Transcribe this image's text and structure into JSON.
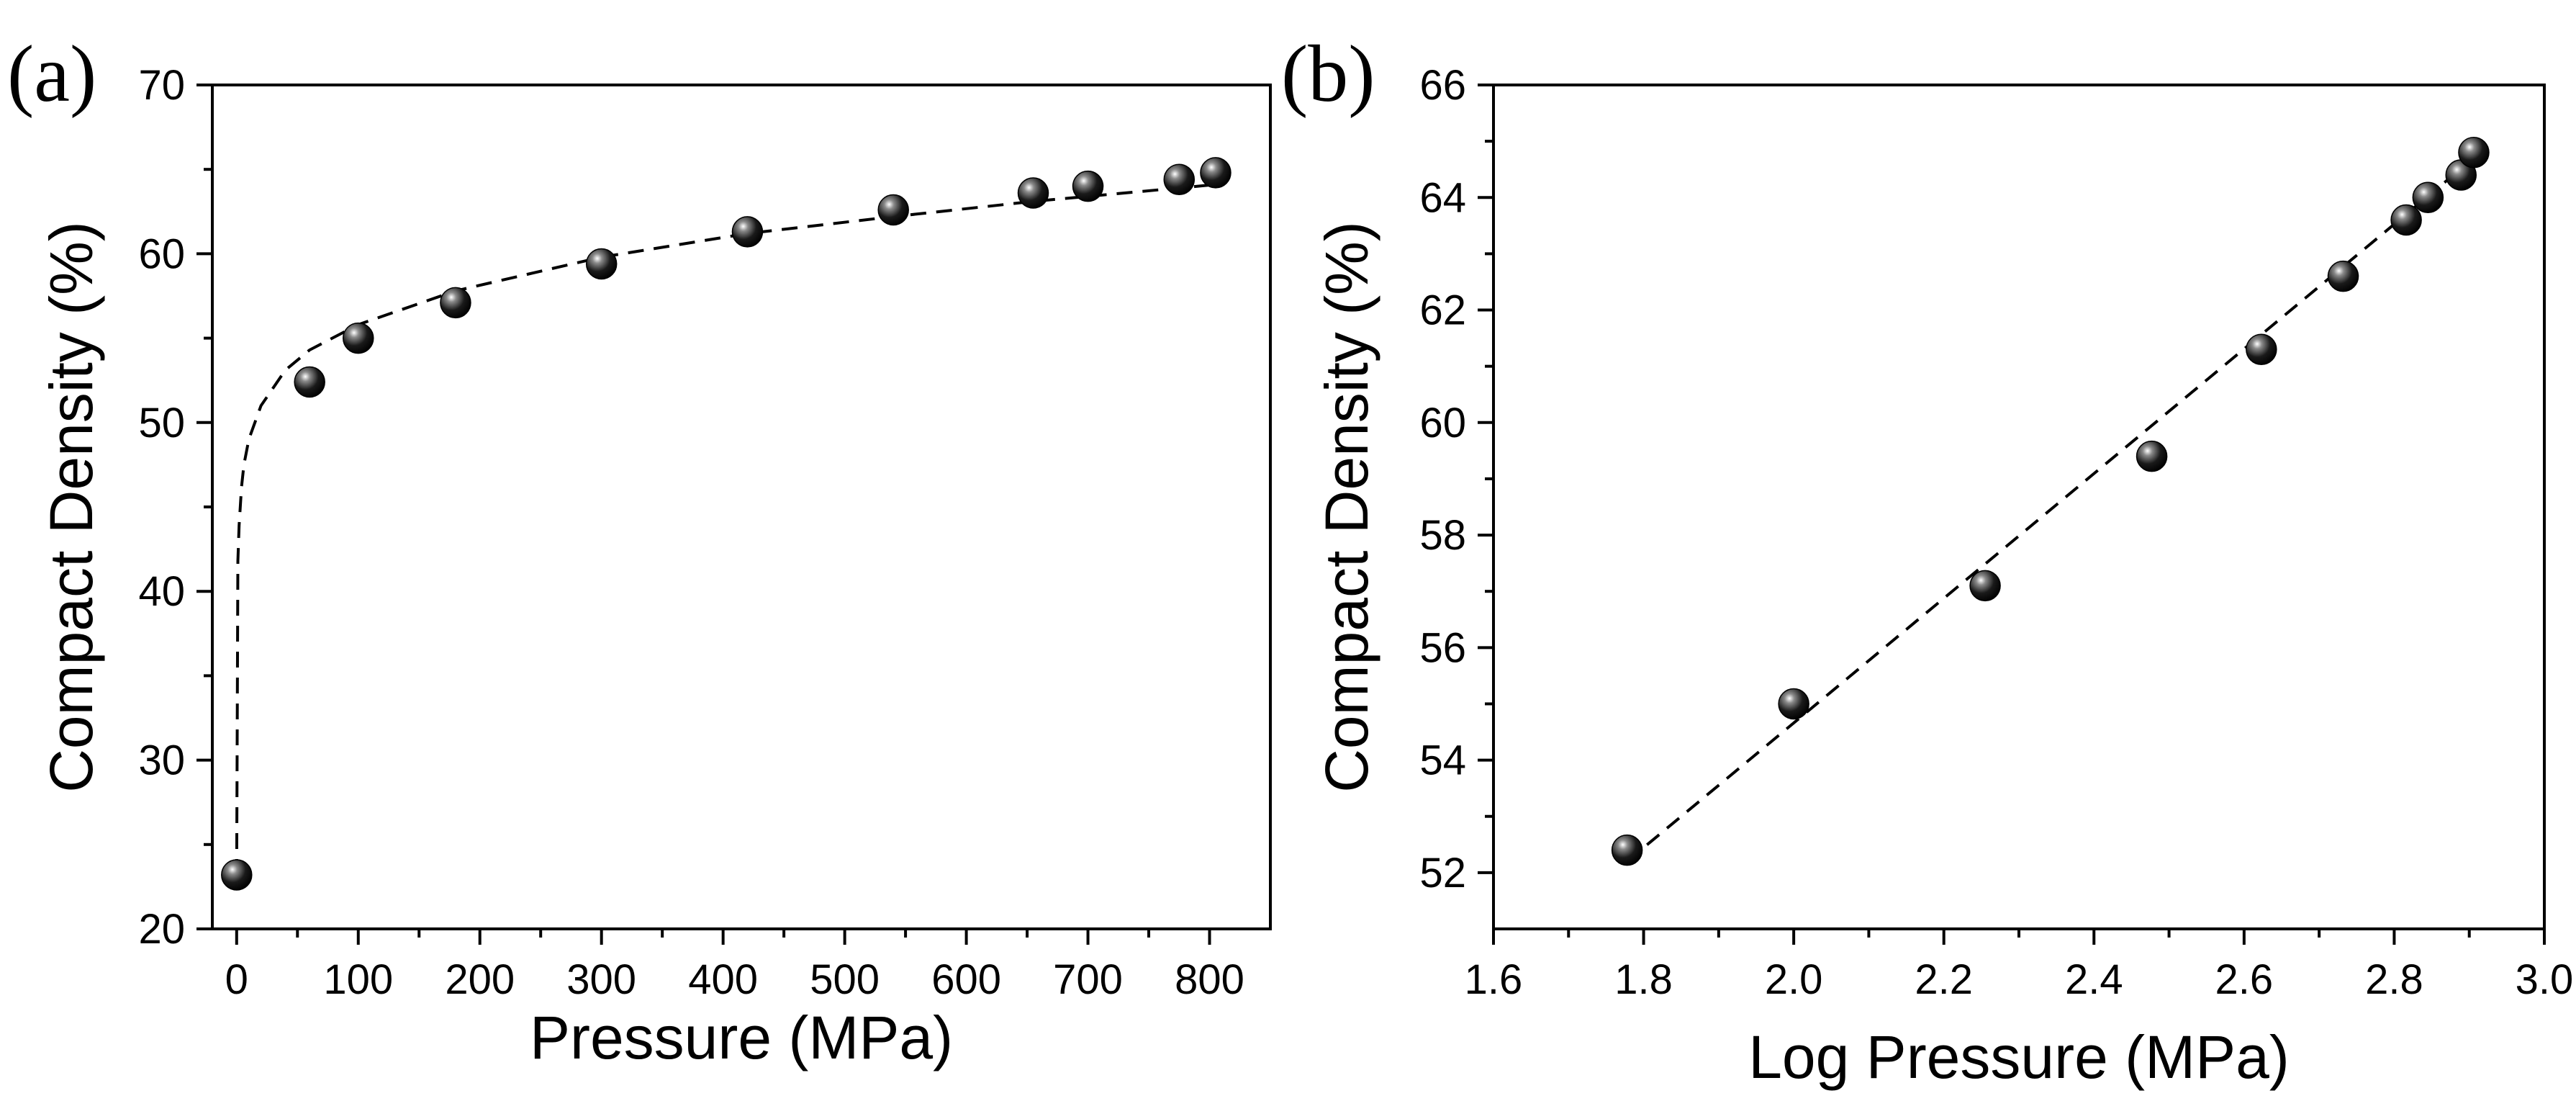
{
  "chart_data": [
    {
      "type": "scatter",
      "panel_label": "(a)",
      "xlabel": "Pressure (MPa)",
      "ylabel": "Compact Density (%)",
      "xlim": [
        -20,
        850
      ],
      "ylim": [
        20,
        70
      ],
      "xticks": [
        "0",
        "100",
        "200",
        "300",
        "400",
        "500",
        "600",
        "700",
        "800"
      ],
      "yticks": [
        "20",
        "30",
        "40",
        "50",
        "60",
        "70"
      ],
      "series": [
        {
          "name": "data",
          "x": [
            0,
            60,
            100,
            180,
            300,
            420,
            540,
            655,
            700,
            775,
            805
          ],
          "y": [
            23.2,
            52.4,
            55.0,
            57.1,
            59.4,
            61.3,
            62.6,
            63.6,
            64.0,
            64.4,
            64.8
          ]
        }
      ],
      "fit": {
        "style": "dashed",
        "x": [
          0,
          1,
          2,
          4,
          6,
          10,
          20,
          40,
          60,
          100,
          180,
          300,
          420,
          540,
          655,
          700,
          775,
          805
        ],
        "y": [
          23.2,
          41.8,
          43.9,
          46.2,
          47.5,
          49.0,
          51.0,
          53.1,
          54.3,
          55.8,
          57.8,
          59.8,
          61.2,
          62.2,
          63.1,
          63.4,
          63.9,
          64.1
        ]
      }
    },
    {
      "type": "scatter",
      "panel_label": "(b)",
      "xlabel": "Log Pressure (MPa)",
      "ylabel": "Compact Density (%)",
      "xlim": [
        1.6,
        3.0
      ],
      "ylim": [
        51,
        66
      ],
      "xticks": [
        "1.6",
        "1.8",
        "2.0",
        "2.2",
        "2.4",
        "2.6",
        "2.8",
        "3.0"
      ],
      "yticks": [
        "52",
        "54",
        "56",
        "58",
        "60",
        "62",
        "64",
        "66"
      ],
      "series": [
        {
          "name": "data",
          "x": [
            1.778,
            2.0,
            2.255,
            2.477,
            2.623,
            2.732,
            2.816,
            2.845,
            2.889,
            2.906
          ],
          "y": [
            52.4,
            55.0,
            57.1,
            59.4,
            61.3,
            62.6,
            63.6,
            64.0,
            64.4,
            64.8
          ]
        }
      ],
      "fit": {
        "style": "dashed",
        "x": [
          1.778,
          2.906
        ],
        "y": [
          52.2,
          64.7
        ]
      }
    }
  ]
}
